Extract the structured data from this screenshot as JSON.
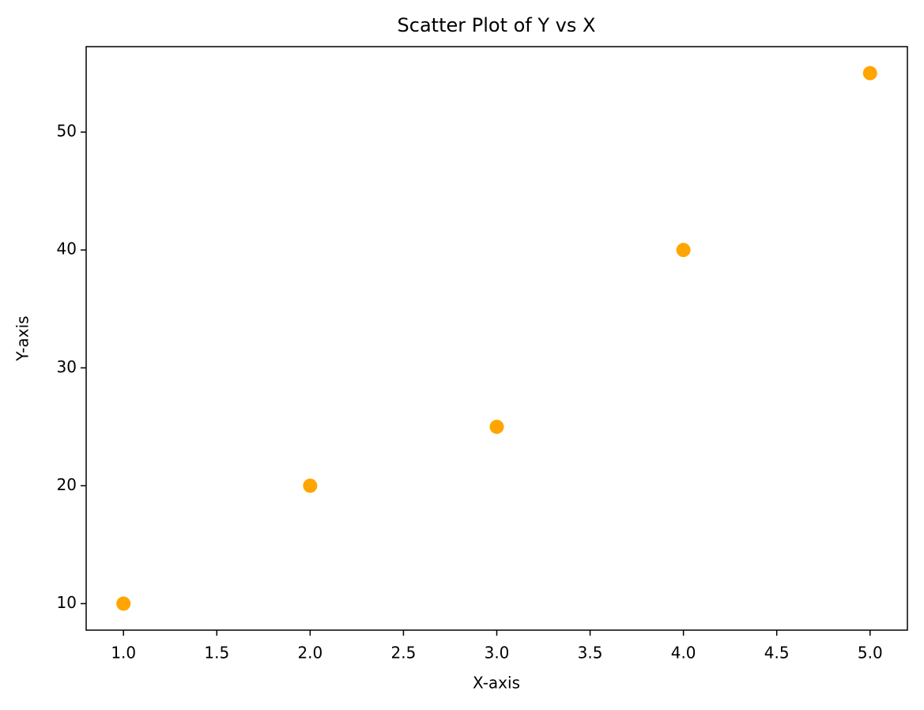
{
  "chart_data": {
    "type": "scatter",
    "title": "Scatter Plot of Y vs X",
    "x_label": "X-axis",
    "y_label": "Y-axis",
    "x": [
      1,
      2,
      3,
      4,
      5
    ],
    "values": [
      10,
      20,
      25,
      40,
      55
    ],
    "color": "#ffa500",
    "xlim": [
      0.8,
      5.2
    ],
    "ylim": [
      7.75,
      57.25
    ],
    "xticks": [
      {
        "value": 1,
        "label": "1.0"
      },
      1.5,
      {
        "value": 2,
        "label": "2.0"
      },
      2.5,
      {
        "value": 3,
        "label": "3.0"
      },
      3.5,
      {
        "value": 4,
        "label": "4.0"
      },
      4.5,
      {
        "value": 5,
        "label": "5.0"
      }
    ],
    "yticks": [
      10,
      20,
      30,
      40,
      50
    ],
    "grid": false
  }
}
